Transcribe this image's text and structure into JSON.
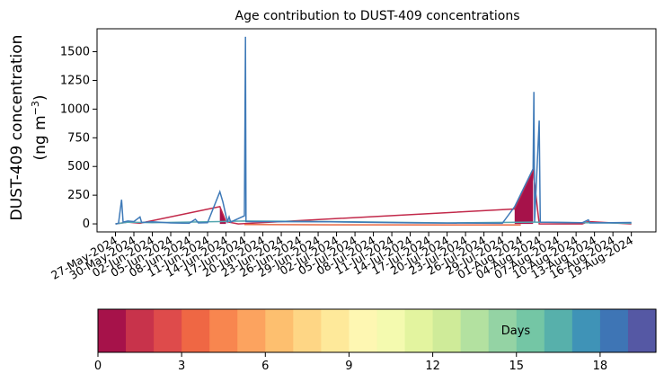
{
  "chart_data": {
    "type": "area",
    "title": "Age contribution to DUST-409 concentrations",
    "ylabel_line1": "DUST-409 concentration",
    "ylabel_line2": "(ng m",
    "ylabel_sup": "−3",
    "ylabel_close": ")",
    "xlabel": "",
    "ylim": [
      -70,
      1700
    ],
    "yticks": [
      0,
      250,
      500,
      750,
      1000,
      1250,
      1500
    ],
    "ytick_labels": [
      "0",
      "250",
      "500",
      "750",
      "1000",
      "1250",
      "1500"
    ],
    "xlim": [
      "2024-05-24",
      "2024-08-23"
    ],
    "xtick_labels": [
      "27-May-2024",
      "30-May-2024",
      "02-Jun-2024",
      "05-Jun-2024",
      "08-Jun-2024",
      "11-Jun-2024",
      "14-Jun-2024",
      "17-Jun-2024",
      "20-Jun-2024",
      "23-Jun-2024",
      "26-Jun-2024",
      "29-Jun-2024",
      "02-Jul-2024",
      "05-Jul-2024",
      "08-Jul-2024",
      "11-Jul-2024",
      "14-Jul-2024",
      "17-Jul-2024",
      "20-Jul-2024",
      "23-Jul-2024",
      "26-Jul-2024",
      "29-Jul-2024",
      "01-Aug-2024",
      "04-Aug-2024",
      "07-Aug-2024",
      "10-Aug-2024",
      "13-Aug-2024",
      "16-Aug-2024",
      "19-Aug-2024"
    ],
    "series": [
      {
        "color": "#3f7ab8",
        "points": [
          [
            "2024-05-27",
            0
          ],
          [
            "2024-05-27T12",
            5
          ],
          [
            "2024-05-28",
            210
          ],
          [
            "2024-05-28T06",
            15
          ],
          [
            "2024-05-29",
            25
          ],
          [
            "2024-05-30",
            20
          ],
          [
            "2024-05-31",
            60
          ],
          [
            "2024-05-31T06",
            12
          ],
          [
            "2024-06-02",
            18
          ],
          [
            "2024-06-05",
            8
          ],
          [
            "2024-06-08",
            5
          ],
          [
            "2024-06-09",
            40
          ],
          [
            "2024-06-09T12",
            8
          ],
          [
            "2024-06-11",
            10
          ],
          [
            "2024-06-13",
            280
          ],
          [
            "2024-06-13T12",
            190
          ],
          [
            "2024-06-14",
            70
          ],
          [
            "2024-06-14T06",
            20
          ],
          [
            "2024-06-14T12",
            60
          ],
          [
            "2024-06-14T18",
            15
          ],
          [
            "2024-06-17",
            70
          ],
          [
            "2024-06-17T04",
            1630
          ],
          [
            "2024-06-17T06",
            20
          ],
          [
            "2024-07-01",
            18
          ],
          [
            "2024-07-15",
            8
          ],
          [
            "2024-07-29",
            5
          ],
          [
            "2024-07-31",
            150
          ],
          [
            "2024-08-03",
            480
          ],
          [
            "2024-08-03T03",
            1150
          ],
          [
            "2024-08-03T06",
            20
          ],
          [
            "2024-08-04",
            900
          ],
          [
            "2024-08-04T04",
            15
          ],
          [
            "2024-08-11",
            10
          ],
          [
            "2024-08-12",
            35
          ],
          [
            "2024-08-12T06",
            8
          ],
          [
            "2024-08-19",
            12
          ]
        ]
      },
      {
        "color": "#55a7b0",
        "points": [
          [
            "2024-05-27",
            0
          ],
          [
            "2024-05-29",
            15
          ],
          [
            "2024-06-02",
            10
          ],
          [
            "2024-06-13",
            20
          ],
          [
            "2024-06-17",
            25
          ],
          [
            "2024-07-01",
            20
          ],
          [
            "2024-07-20",
            8
          ],
          [
            "2024-08-03",
            15
          ],
          [
            "2024-08-19",
            5
          ]
        ]
      },
      {
        "color": "#e8663f",
        "points": [
          [
            "2024-06-17",
            -5
          ],
          [
            "2024-07-01",
            -8
          ],
          [
            "2024-08-01",
            -10
          ]
        ]
      },
      {
        "color": "#c2294a",
        "points": [
          [
            "2024-05-27",
            0
          ],
          [
            "2024-05-29",
            15
          ],
          [
            "2024-05-31",
            5
          ],
          [
            "2024-06-13",
            150
          ],
          [
            "2024-06-14",
            20
          ],
          [
            "2024-06-16",
            0
          ],
          [
            "2024-07-31",
            130
          ],
          [
            "2024-08-03",
            470
          ],
          [
            "2024-08-04",
            0
          ],
          [
            "2024-08-11",
            0
          ],
          [
            "2024-08-12",
            20
          ],
          [
            "2024-08-19",
            0
          ]
        ]
      }
    ],
    "filled_regions": [
      {
        "color": "#a6124a",
        "points": [
          [
            "2024-06-13",
            0
          ],
          [
            "2024-06-13",
            150
          ],
          [
            "2024-06-14",
            20
          ],
          [
            "2024-06-14",
            0
          ]
        ]
      },
      {
        "color": "#a6124a",
        "points": [
          [
            "2024-07-31",
            0
          ],
          [
            "2024-07-31",
            130
          ],
          [
            "2024-08-03",
            470
          ],
          [
            "2024-08-03",
            0
          ]
        ]
      }
    ],
    "colorbar": {
      "label": "Days",
      "range": [
        0,
        20
      ],
      "ticks": [
        0,
        3,
        6,
        9,
        12,
        15,
        18
      ],
      "tick_labels": [
        "0",
        "3",
        "6",
        "9",
        "12",
        "15",
        "18"
      ],
      "colors": [
        "#a6124a",
        "#c8334b",
        "#de4b4b",
        "#ef6744",
        "#f8864f",
        "#fca35f",
        "#fdbf6f",
        "#fed685",
        "#fee99a",
        "#fef7b2",
        "#f4faaf",
        "#e3f49f",
        "#cfeb99",
        "#b3e1a0",
        "#94d3a4",
        "#74c6a5",
        "#57b0ab",
        "#3f93b7",
        "#3e75b5",
        "#5558a4"
      ]
    }
  }
}
